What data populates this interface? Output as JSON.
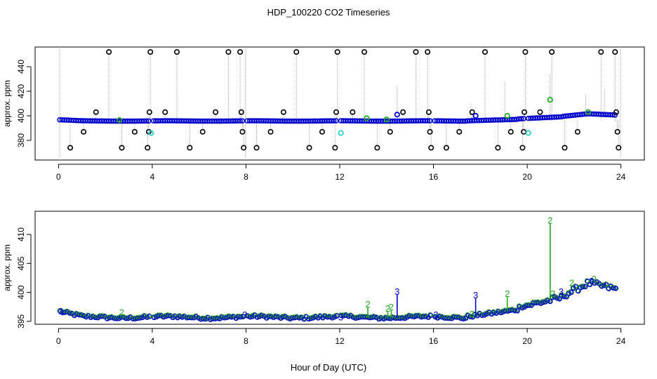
{
  "title": "HDP_100220  CO2 Timeseries",
  "xlabel": "Hour of Day (UTC)",
  "chart_data": [
    {
      "type": "scatter",
      "panel": "top",
      "ylabel": "approx. ppm",
      "xlim": [
        -1,
        25
      ],
      "ylim": [
        364,
        456
      ],
      "xticks": [
        0,
        4,
        8,
        12,
        16,
        20,
        24
      ],
      "yticks": [
        380,
        400,
        420,
        440
      ],
      "grid": false,
      "legend": "none",
      "colors": {
        "outlier": "#000000",
        "main": "#0000cc",
        "accent": "#22aa22",
        "cyan": "#33cccc",
        "spike": "#aaaaaa"
      },
      "gaps": [
        3.95,
        7.95,
        11.95,
        15.9,
        19.95
      ],
      "outliers": [
        {
          "x": 0.5,
          "y": 374
        },
        {
          "x": 1.07,
          "y": 387
        },
        {
          "x": 1.6,
          "y": 403
        },
        {
          "x": 2.15,
          "y": 452
        },
        {
          "x": 2.7,
          "y": 374
        },
        {
          "x": 3.25,
          "y": 387
        },
        {
          "x": 3.8,
          "y": 374
        },
        {
          "x": 3.85,
          "y": 387
        },
        {
          "x": 3.88,
          "y": 403
        },
        {
          "x": 3.92,
          "y": 452
        },
        {
          "x": 4.55,
          "y": 403
        },
        {
          "x": 5.05,
          "y": 452
        },
        {
          "x": 5.6,
          "y": 374
        },
        {
          "x": 6.15,
          "y": 387
        },
        {
          "x": 6.7,
          "y": 403
        },
        {
          "x": 7.25,
          "y": 452
        },
        {
          "x": 7.75,
          "y": 452
        },
        {
          "x": 7.8,
          "y": 403
        },
        {
          "x": 7.85,
          "y": 387
        },
        {
          "x": 7.9,
          "y": 374
        },
        {
          "x": 8.45,
          "y": 374
        },
        {
          "x": 9.05,
          "y": 387
        },
        {
          "x": 9.6,
          "y": 403
        },
        {
          "x": 10.15,
          "y": 452
        },
        {
          "x": 10.7,
          "y": 374
        },
        {
          "x": 11.25,
          "y": 387
        },
        {
          "x": 11.8,
          "y": 374
        },
        {
          "x": 11.85,
          "y": 403
        },
        {
          "x": 11.9,
          "y": 452
        },
        {
          "x": 12.55,
          "y": 403
        },
        {
          "x": 13.05,
          "y": 452
        },
        {
          "x": 13.6,
          "y": 374
        },
        {
          "x": 14.15,
          "y": 387
        },
        {
          "x": 14.7,
          "y": 403
        },
        {
          "x": 15.25,
          "y": 452
        },
        {
          "x": 15.75,
          "y": 452
        },
        {
          "x": 15.8,
          "y": 403
        },
        {
          "x": 15.85,
          "y": 387
        },
        {
          "x": 15.9,
          "y": 374
        },
        {
          "x": 16.55,
          "y": 374
        },
        {
          "x": 17.1,
          "y": 387
        },
        {
          "x": 17.65,
          "y": 403
        },
        {
          "x": 18.2,
          "y": 452
        },
        {
          "x": 18.75,
          "y": 374
        },
        {
          "x": 19.3,
          "y": 387
        },
        {
          "x": 19.8,
          "y": 374
        },
        {
          "x": 19.85,
          "y": 387
        },
        {
          "x": 19.88,
          "y": 403
        },
        {
          "x": 19.92,
          "y": 452
        },
        {
          "x": 20.55,
          "y": 403
        },
        {
          "x": 21.05,
          "y": 452
        },
        {
          "x": 21.6,
          "y": 374
        },
        {
          "x": 22.15,
          "y": 387
        },
        {
          "x": 23.15,
          "y": 452
        },
        {
          "x": 23.75,
          "y": 452
        },
        {
          "x": 23.8,
          "y": 403
        },
        {
          "x": 23.85,
          "y": 387
        },
        {
          "x": 23.9,
          "y": 374
        }
      ],
      "spikes": [
        {
          "x": 0.05,
          "y1": 364,
          "y2": 456
        },
        {
          "x": 7.98,
          "y1": 364,
          "y2": 456
        },
        {
          "x": 14.45,
          "y1": 396,
          "y2": 424
        },
        {
          "x": 17.6,
          "y1": 396,
          "y2": 410
        },
        {
          "x": 19.05,
          "y1": 396,
          "y2": 428
        },
        {
          "x": 20.98,
          "y1": 396,
          "y2": 434
        },
        {
          "x": 22.5,
          "y1": 400,
          "y2": 418
        },
        {
          "x": 23.3,
          "y1": 400,
          "y2": 422
        },
        {
          "x": 23.98,
          "y1": 364,
          "y2": 456
        }
      ],
      "extras": [
        {
          "x": 3.95,
          "y": 386,
          "color": "cyan"
        },
        {
          "x": 12.05,
          "y": 386,
          "color": "cyan"
        },
        {
          "x": 20.05,
          "y": 386,
          "color": "cyan"
        },
        {
          "x": 14.45,
          "y": 401,
          "color": "main"
        },
        {
          "x": 17.8,
          "y": 400,
          "color": "main"
        },
        {
          "x": 19.15,
          "y": 400,
          "color": "accent"
        },
        {
          "x": 20.98,
          "y": 413,
          "color": "accent"
        },
        {
          "x": 22.6,
          "y": 403,
          "color": "accent"
        },
        {
          "x": 13.15,
          "y": 398,
          "color": "accent"
        },
        {
          "x": 14.0,
          "y": 397,
          "color": "accent"
        },
        {
          "x": 2.6,
          "y": 396.5,
          "color": "accent"
        }
      ]
    },
    {
      "type": "scatter",
      "panel": "bottom",
      "ylabel": "approx. ppm",
      "xlim": [
        -1,
        25
      ],
      "ylim": [
        394.5,
        414
      ],
      "xticks": [
        0,
        4,
        8,
        12,
        16,
        20,
        24
      ],
      "yticks": [
        395,
        400,
        405,
        410
      ],
      "grid": false,
      "legend": "none",
      "colors": {
        "main": "#0000cc",
        "accent": "#22aa22"
      },
      "gaps": [
        3.95,
        7.95,
        11.95,
        15.9
      ],
      "labels": [
        {
          "x": 0.1,
          "y": 396.8,
          "text": "3",
          "color": "main"
        },
        {
          "x": 2.7,
          "y": 396.6,
          "text": "2",
          "color": "accent"
        },
        {
          "x": 7.95,
          "y": 396.2,
          "text": "3",
          "color": "main"
        },
        {
          "x": 12.05,
          "y": 395.8,
          "text": "3",
          "color": "main"
        },
        {
          "x": 13.2,
          "y": 398.0,
          "text": "2",
          "color": "accent"
        },
        {
          "x": 14.05,
          "y": 397.3,
          "text": "2",
          "color": "accent"
        },
        {
          "x": 14.2,
          "y": 397.5,
          "text": "2",
          "color": "accent"
        },
        {
          "x": 14.45,
          "y": 400.2,
          "text": "3",
          "color": "main"
        },
        {
          "x": 16.1,
          "y": 396.2,
          "text": "3",
          "color": "main"
        },
        {
          "x": 17.65,
          "y": 396.3,
          "text": "3",
          "color": "accent"
        },
        {
          "x": 17.8,
          "y": 399.6,
          "text": "3",
          "color": "main"
        },
        {
          "x": 19.15,
          "y": 399.8,
          "text": "2",
          "color": "accent"
        },
        {
          "x": 20.98,
          "y": 412.5,
          "text": "2",
          "color": "accent"
        },
        {
          "x": 21.1,
          "y": 399.8,
          "text": "2",
          "color": "accent"
        },
        {
          "x": 21.45,
          "y": 400.2,
          "text": "3",
          "color": "main"
        },
        {
          "x": 21.9,
          "y": 401.7,
          "text": "2",
          "color": "accent"
        },
        {
          "x": 22.85,
          "y": 402.4,
          "text": "2",
          "color": "accent"
        },
        {
          "x": 22.75,
          "y": 402.0,
          "text": "3",
          "color": "main"
        }
      ]
    }
  ]
}
